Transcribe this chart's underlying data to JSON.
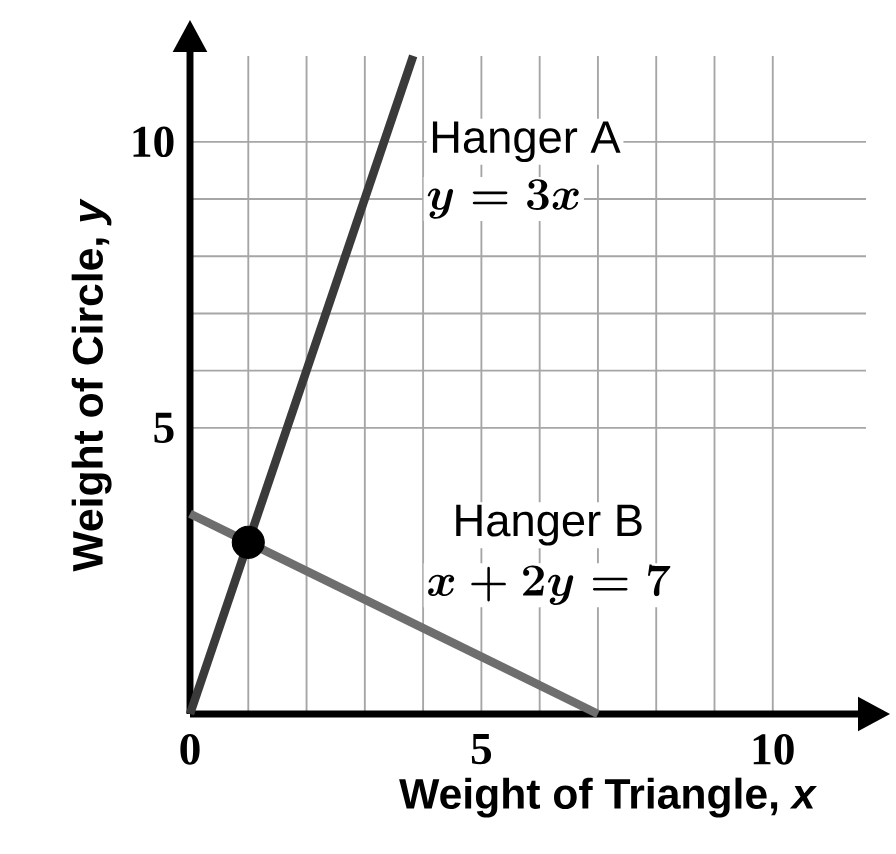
{
  "chart_data": {
    "type": "line",
    "xlabel": "Weight of Triangle, *x*",
    "ylabel": "Weight of Circle, *y*",
    "xlim": [
      0,
      11.6
    ],
    "ylim": [
      0,
      11.5
    ],
    "xticks": [
      0,
      5,
      10
    ],
    "yticks": [
      5,
      10
    ],
    "grid": true,
    "series": [
      {
        "name": "Hanger A",
        "color": "#3a3a3a",
        "x": [
          0,
          3.83
        ],
        "values": [
          0,
          11.5
        ]
      },
      {
        "name": "Hanger B",
        "color": "#6e6e6e",
        "x": [
          0,
          7
        ],
        "values": [
          3.5,
          0
        ]
      },
      {
        "type": "scatter",
        "color": "#000000",
        "x": [
          1
        ],
        "values": [
          3
        ]
      }
    ],
    "annotations": [
      "y = 3x",
      "x + 2y = 7"
    ]
  }
}
